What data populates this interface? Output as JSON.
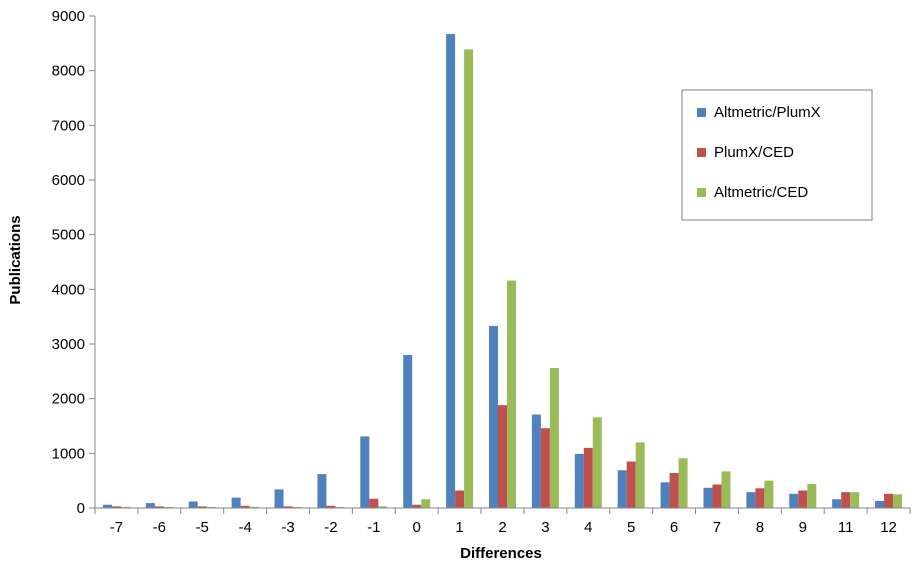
{
  "chart_data": {
    "type": "bar",
    "title": "",
    "xlabel": "Differences",
    "ylabel": "Publications",
    "ylim": [
      0,
      9000
    ],
    "yticks": [
      0,
      1000,
      2000,
      3000,
      4000,
      5000,
      6000,
      7000,
      8000,
      9000
    ],
    "grid": false,
    "legend_position": "right",
    "categories": [
      "-7",
      "-6",
      "-5",
      "-4",
      "-3",
      "-2",
      "-1",
      "0",
      "1",
      "2",
      "3",
      "4",
      "5",
      "6",
      "7",
      "8",
      "9",
      "11",
      "12"
    ],
    "series": [
      {
        "name": "Altmetric/PlumX",
        "color": "#4f81bd",
        "values": [
          60,
          90,
          120,
          190,
          340,
          620,
          1310,
          2800,
          8670,
          3330,
          1710,
          990,
          690,
          470,
          370,
          290,
          260,
          160,
          130
        ]
      },
      {
        "name": "PlumX/CED",
        "color": "#c0504d",
        "values": [
          30,
          30,
          30,
          40,
          30,
          40,
          170,
          60,
          320,
          1880,
          1460,
          1100,
          850,
          640,
          430,
          360,
          320,
          290,
          260
        ]
      },
      {
        "name": "Altmetric/CED",
        "color": "#9bbb59",
        "values": [
          20,
          20,
          20,
          20,
          20,
          20,
          30,
          160,
          8390,
          4160,
          2560,
          1660,
          1200,
          910,
          670,
          500,
          440,
          290,
          250
        ]
      }
    ]
  }
}
